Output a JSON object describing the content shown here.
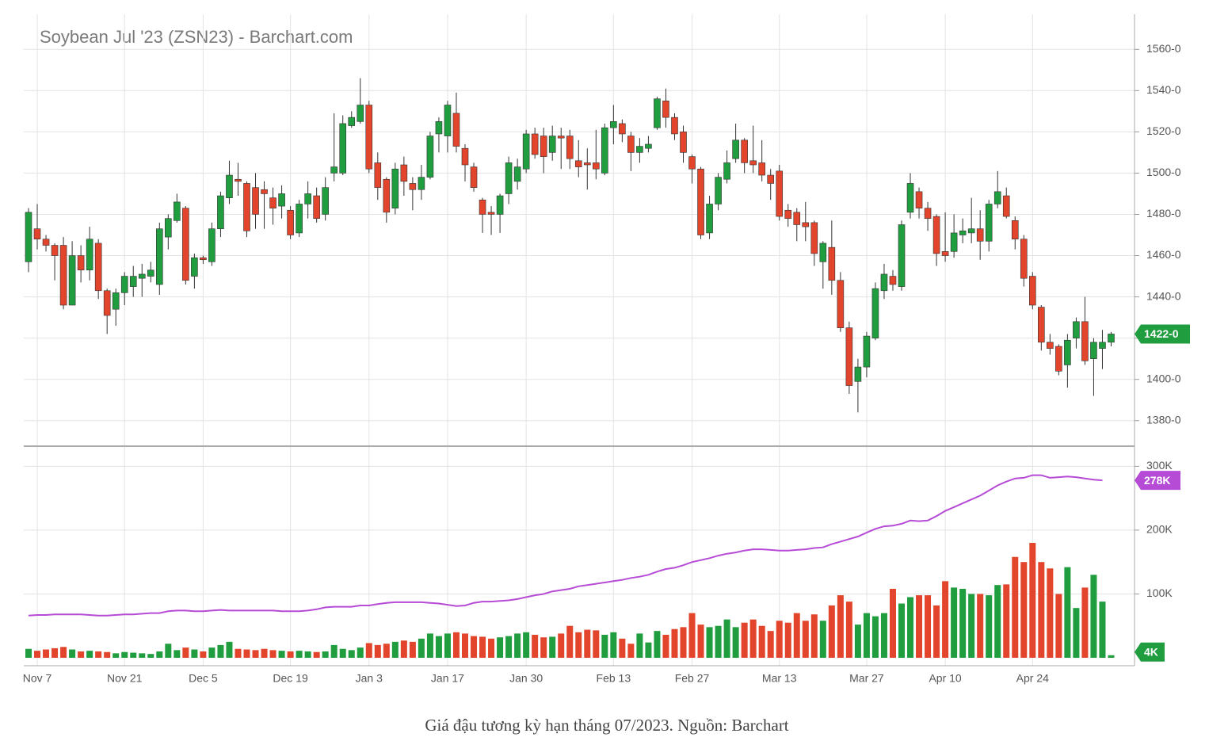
{
  "chart_data": {
    "type": "candlestick",
    "title": "Soybean Jul '23 (ZSN23) - Barchart.com",
    "categories": [
      null,
      "Nov 7",
      null,
      null,
      null,
      null,
      null,
      null,
      null,
      null,
      null,
      "Nov 21",
      null,
      null,
      null,
      null,
      null,
      null,
      null,
      null,
      "Dec 5",
      null,
      null,
      null,
      null,
      null,
      null,
      null,
      null,
      null,
      "Dec 19",
      null,
      null,
      null,
      null,
      null,
      null,
      null,
      null,
      "Jan 3",
      null,
      null,
      null,
      null,
      null,
      null,
      null,
      null,
      "Jan 17",
      null,
      null,
      null,
      null,
      null,
      null,
      null,
      null,
      "Jan 30",
      null,
      null,
      null,
      null,
      null,
      null,
      null,
      null,
      null,
      "Feb 13",
      null,
      null,
      null,
      null,
      null,
      null,
      null,
      null,
      "Feb 27",
      null,
      null,
      null,
      null,
      null,
      null,
      null,
      null,
      null,
      "Mar 13",
      null,
      null,
      null,
      null,
      null,
      null,
      null,
      null,
      null,
      "Mar 27",
      null,
      null,
      null,
      null,
      null,
      null,
      null,
      null,
      "Apr 10",
      null,
      null,
      null,
      null,
      null,
      null,
      null,
      null,
      null,
      "Apr 24",
      null,
      null,
      null,
      null,
      null,
      null,
      null,
      null,
      null
    ],
    "open": [
      1457,
      1473,
      1468,
      1465,
      1465,
      1436,
      1460,
      1453,
      1466,
      1443,
      1434,
      1442,
      1445,
      1449,
      1450,
      1446,
      1469,
      1477,
      1483,
      1450,
      1459,
      1457,
      1473,
      1488,
      1497,
      1495,
      1493,
      1492,
      1488,
      1484,
      1482,
      1471,
      1485,
      1489,
      1480,
      1500,
      1500,
      1523,
      1525,
      1533,
      1505,
      1497,
      1483,
      1504,
      1495,
      1492,
      1498,
      1519,
      1518,
      1529,
      1512,
      1503,
      1487,
      1481,
      1480,
      1490,
      1496,
      1502,
      1519,
      1518,
      1510,
      1518,
      1518,
      1506,
      1505,
      1505,
      1500,
      1522,
      1524,
      1518,
      1510,
      1512,
      1522,
      1535,
      1527,
      1520,
      1508,
      1502,
      1471,
      1485,
      1497,
      1507,
      1516,
      1506,
      1505,
      1499,
      1501,
      1482,
      1481,
      1476,
      1476,
      1457,
      1464,
      1448,
      1425,
      1399,
      1406,
      1420,
      1443,
      1450,
      1445,
      1481,
      1491,
      1483,
      1479,
      1462,
      1462,
      1470,
      1471,
      1473,
      1467,
      1485,
      1489,
      1477,
      1468,
      1450,
      1435,
      1418,
      1416,
      1407,
      1420,
      1428,
      1410,
      1415,
      1418
    ],
    "high": [
      1483,
      1485,
      1470,
      1466,
      1469,
      1467,
      1465,
      1474,
      1468,
      1444,
      1444,
      1452,
      1455,
      1456,
      1457,
      1476,
      1480,
      1490,
      1484,
      1461,
      1460,
      1476,
      1491,
      1506,
      1505,
      1496,
      1500,
      1496,
      1493,
      1494,
      1484,
      1487,
      1496,
      1493,
      1498,
      1529,
      1528,
      1530,
      1546,
      1535,
      1510,
      1498,
      1505,
      1508,
      1498,
      1504,
      1520,
      1527,
      1535,
      1539,
      1514,
      1505,
      1488,
      1484,
      1490,
      1508,
      1507,
      1521,
      1522,
      1522,
      1523,
      1522,
      1521,
      1516,
      1512,
      1521,
      1524,
      1533,
      1526,
      1520,
      1517,
      1518,
      1537,
      1541,
      1529,
      1523,
      1509,
      1503,
      1489,
      1500,
      1511,
      1524,
      1517,
      1523,
      1516,
      1502,
      1504,
      1485,
      1483,
      1486,
      1477,
      1467,
      1477,
      1452,
      1428,
      1410,
      1423,
      1447,
      1456,
      1453,
      1477,
      1500,
      1493,
      1486,
      1480,
      1481,
      1480,
      1478,
      1488,
      1482,
      1487,
      1501,
      1493,
      1479,
      1470,
      1452,
      1436,
      1422,
      1417,
      1422,
      1430,
      1440,
      1420,
      1424,
      1423
    ],
    "low": [
      1452,
      1463,
      1462,
      1448,
      1434,
      1436,
      1447,
      1448,
      1439,
      1422,
      1426,
      1436,
      1440,
      1440,
      1447,
      1441,
      1463,
      1476,
      1446,
      1444,
      1456,
      1455,
      1469,
      1485,
      1489,
      1469,
      1473,
      1473,
      1475,
      1478,
      1468,
      1469,
      1478,
      1476,
      1477,
      1496,
      1499,
      1522,
      1524,
      1500,
      1487,
      1476,
      1480,
      1489,
      1482,
      1487,
      1497,
      1510,
      1510,
      1510,
      1496,
      1491,
      1471,
      1470,
      1471,
      1485,
      1492,
      1500,
      1507,
      1500,
      1506,
      1502,
      1502,
      1498,
      1492,
      1497,
      1499,
      1514,
      1515,
      1501,
      1505,
      1510,
      1521,
      1522,
      1516,
      1505,
      1495,
      1468,
      1468,
      1482,
      1495,
      1505,
      1500,
      1500,
      1496,
      1487,
      1477,
      1474,
      1467,
      1467,
      1455,
      1444,
      1441,
      1423,
      1393,
      1384,
      1401,
      1419,
      1439,
      1443,
      1443,
      1478,
      1478,
      1472,
      1455,
      1457,
      1459,
      1466,
      1466,
      1458,
      1462,
      1483,
      1478,
      1463,
      1445,
      1434,
      1414,
      1412,
      1402,
      1396,
      1415,
      1407,
      1392,
      1405,
      1416
    ],
    "close": [
      1481,
      1468,
      1465,
      1460,
      1436,
      1460,
      1453,
      1468,
      1443,
      1431,
      1442,
      1450,
      1450,
      1451,
      1453,
      1473,
      1478,
      1486,
      1448,
      1459,
      1458,
      1473,
      1489,
      1499,
      1496,
      1472,
      1480,
      1490,
      1483,
      1490,
      1470,
      1485,
      1490,
      1478,
      1493,
      1503,
      1524,
      1527,
      1533,
      1502,
      1493,
      1481,
      1502,
      1496,
      1492,
      1498,
      1518,
      1525,
      1533,
      1513,
      1504,
      1493,
      1480,
      1480,
      1489,
      1505,
      1503,
      1519,
      1509,
      1508,
      1518,
      1517,
      1507,
      1503,
      1504,
      1502,
      1522,
      1525,
      1519,
      1510,
      1513,
      1514,
      1536,
      1527,
      1519,
      1510,
      1502,
      1470,
      1485,
      1498,
      1505,
      1516,
      1505,
      1504,
      1499,
      1495,
      1479,
      1478,
      1475,
      1474,
      1461,
      1466,
      1448,
      1425,
      1397,
      1406,
      1421,
      1444,
      1451,
      1446,
      1475,
      1495,
      1483,
      1478,
      1461,
      1460,
      1471,
      1472,
      1473,
      1467,
      1485,
      1491,
      1479,
      1468,
      1449,
      1436,
      1418,
      1415,
      1404,
      1419,
      1428,
      1409,
      1418,
      1418,
      1422
    ],
    "volume": [
      14,
      11,
      13,
      15,
      17,
      13,
      10,
      11,
      10,
      9,
      7,
      9,
      8,
      7,
      6,
      10,
      22,
      12,
      16,
      13,
      10,
      16,
      20,
      25,
      14,
      13,
      12,
      14,
      12,
      11,
      10,
      11,
      10,
      9,
      10,
      20,
      14,
      12,
      16,
      23,
      20,
      22,
      25,
      27,
      25,
      30,
      38,
      34,
      38,
      40,
      38,
      34,
      33,
      30,
      32,
      34,
      38,
      40,
      36,
      32,
      33,
      38,
      50,
      40,
      44,
      43,
      36,
      40,
      30,
      22,
      38,
      24,
      42,
      36,
      45,
      48,
      70,
      52,
      48,
      50,
      60,
      48,
      55,
      60,
      50,
      42,
      58,
      55,
      70,
      58,
      68,
      58,
      82,
      98,
      88,
      52,
      70,
      65,
      70,
      108,
      85,
      95,
      98,
      98,
      82,
      120,
      110,
      108,
      100,
      100,
      98,
      114,
      115,
      158,
      150,
      180,
      150,
      140,
      100,
      142,
      78,
      110,
      130,
      88,
      4
    ],
    "open_interest": [
      66,
      67,
      67,
      68,
      68,
      68,
      68,
      67,
      66,
      66,
      67,
      68,
      68,
      69,
      70,
      70,
      73,
      74,
      74,
      73,
      73,
      74,
      75,
      74,
      74,
      74,
      74,
      74,
      74,
      73,
      73,
      73,
      74,
      76,
      79,
      80,
      80,
      80,
      82,
      82,
      84,
      86,
      87,
      87,
      87,
      87,
      86,
      85,
      83,
      81,
      82,
      86,
      88,
      88,
      89,
      90,
      92,
      95,
      98,
      100,
      104,
      106,
      108,
      112,
      114,
      116,
      118,
      120,
      122,
      125,
      127,
      130,
      135,
      139,
      141,
      145,
      150,
      153,
      156,
      160,
      163,
      165,
      168,
      170,
      170,
      169,
      168,
      168,
      169,
      170,
      172,
      173,
      178,
      182,
      186,
      190,
      196,
      202,
      206,
      207,
      210,
      215,
      214,
      215,
      222,
      230,
      236,
      242,
      248,
      254,
      262,
      270,
      276,
      281,
      282,
      286,
      286,
      282,
      283,
      284,
      283,
      281,
      279,
      278,
      null
    ],
    "ylim": [
      1368,
      1577
    ],
    "yticks": [
      {
        "value": 1380,
        "label": "1380-0"
      },
      {
        "value": 1400,
        "label": "1400-0"
      },
      {
        "value": 1420,
        "label": "1420-0"
      },
      {
        "value": 1440,
        "label": "1440-0"
      },
      {
        "value": 1460,
        "label": "1460-0"
      },
      {
        "value": 1480,
        "label": "1480-0"
      },
      {
        "value": 1500,
        "label": "1500-0"
      },
      {
        "value": 1520,
        "label": "1520-0"
      },
      {
        "value": 1540,
        "label": "1540-0"
      },
      {
        "value": 1560,
        "label": "1560-0"
      }
    ],
    "y2lim": [
      0,
      329
    ],
    "y2ticks": [
      {
        "value": 100,
        "label": "100K"
      },
      {
        "value": 200,
        "label": "200K"
      },
      {
        "value": 300,
        "label": "300K"
      }
    ],
    "last_price_label": "1422-0",
    "last_volume_label": "4K",
    "last_open_interest_label": "278K",
    "colors": {
      "up": "#1f9d3f",
      "down": "#e2452c",
      "open_interest": "#b64bd6"
    },
    "grid": true
  },
  "caption": "Giá đậu tương kỳ hạn tháng 07/2023. Nguồn: Barchart"
}
